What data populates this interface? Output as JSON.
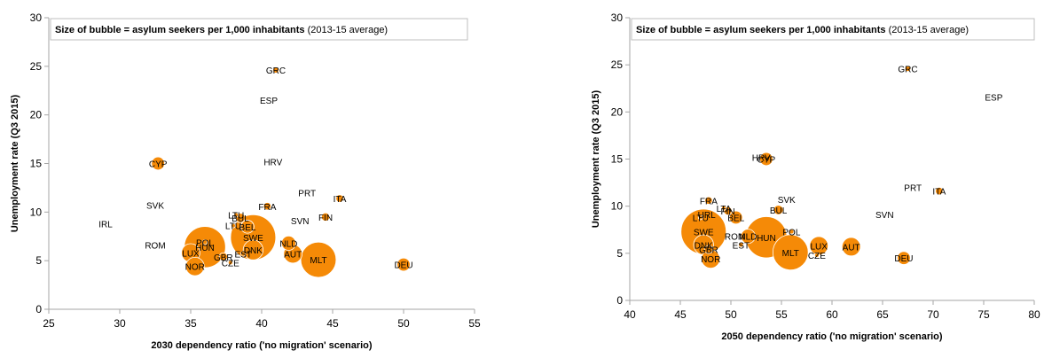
{
  "chart_data": [
    {
      "type": "scatter",
      "title": "",
      "note_bold": "Size of bubble = asylum seekers per 1,000 inhabitants",
      "note_normal": "(2013-15 average)",
      "xlabel": "2030 dependency ratio ('no migration' scenario)",
      "ylabel": "Unemployment rate (Q3 2015)",
      "xlim": [
        25,
        55
      ],
      "ylim": [
        0,
        30
      ],
      "xticks": [
        "25",
        "30",
        "35",
        "40",
        "45",
        "50",
        "55"
      ],
      "yticks": [
        "0",
        "5",
        "10",
        "15",
        "20",
        "25",
        "30"
      ],
      "grid": false,
      "points": [
        {
          "label": "GRC",
          "x": 41.0,
          "y": 24.6,
          "size": 0.3
        },
        {
          "label": "ESP",
          "x": 40.5,
          "y": 21.5,
          "size": 0.0
        },
        {
          "label": "HRV",
          "x": 40.8,
          "y": 15.2,
          "size": 0.0
        },
        {
          "label": "CYP",
          "x": 32.7,
          "y": 15.0,
          "size": 1.5
        },
        {
          "label": "SVK",
          "x": 32.5,
          "y": 10.7,
          "size": 0.0
        },
        {
          "label": "IRL",
          "x": 29.0,
          "y": 8.8,
          "size": 0.0
        },
        {
          "label": "ROM",
          "x": 32.5,
          "y": 6.6,
          "size": 0.0
        },
        {
          "label": "PRT",
          "x": 43.2,
          "y": 12.0,
          "size": 0.0
        },
        {
          "label": "ITA",
          "x": 45.5,
          "y": 11.4,
          "size": 0.5
        },
        {
          "label": "FRA",
          "x": 40.4,
          "y": 10.6,
          "size": 0.5
        },
        {
          "label": "FIN",
          "x": 44.5,
          "y": 9.5,
          "size": 0.6
        },
        {
          "label": "SVN",
          "x": 42.7,
          "y": 9.1,
          "size": 0.0
        },
        {
          "label": "LTU",
          "x": 38.2,
          "y": 9.7,
          "size": 0.1
        },
        {
          "label": "BUL",
          "x": 38.5,
          "y": 9.4,
          "size": 0.8
        },
        {
          "label": "BEL",
          "x": 39.0,
          "y": 8.5,
          "size": 1.5
        },
        {
          "label": "LTU",
          "x": 38.0,
          "y": 8.6,
          "size": 0.1
        },
        {
          "label": "POL",
          "x": 36.0,
          "y": 6.9,
          "size": 0.2
        },
        {
          "label": "HUN",
          "x": 36.0,
          "y": 6.4,
          "size": 15.0
        },
        {
          "label": "SWE",
          "x": 39.4,
          "y": 7.4,
          "size": 18.0
        },
        {
          "label": "DNK",
          "x": 39.4,
          "y": 6.1,
          "size": 3.5
        },
        {
          "label": "NLD",
          "x": 41.9,
          "y": 6.8,
          "size": 1.8
        },
        {
          "label": "AUT",
          "x": 42.2,
          "y": 5.7,
          "size": 3.0
        },
        {
          "label": "LUX",
          "x": 35.0,
          "y": 5.8,
          "size": 3.0
        },
        {
          "label": "GBR",
          "x": 37.3,
          "y": 5.4,
          "size": 0.6
        },
        {
          "label": "EST",
          "x": 38.7,
          "y": 5.7,
          "size": 0.2
        },
        {
          "label": "CZE",
          "x": 37.8,
          "y": 4.8,
          "size": 0.1
        },
        {
          "label": "NOR",
          "x": 35.3,
          "y": 4.4,
          "size": 3.0
        },
        {
          "label": "MLT",
          "x": 44.0,
          "y": 5.1,
          "size": 11.0
        },
        {
          "label": "DEU",
          "x": 50.0,
          "y": 4.6,
          "size": 1.5
        }
      ]
    },
    {
      "type": "scatter",
      "title": "",
      "note_bold": "Size of bubble = asylum seekers per 1,000 inhabitants",
      "note_normal": "(2013-15 average)",
      "xlabel": "2050 dependency ratio ('no migration' scenario)",
      "ylabel": "Unemployment rate (Q3 2015)",
      "xlim": [
        40,
        80
      ],
      "ylim": [
        0,
        30
      ],
      "xticks": [
        "40",
        "45",
        "50",
        "55",
        "60",
        "65",
        "70",
        "75",
        "80"
      ],
      "yticks": [
        "0",
        "5",
        "10",
        "15",
        "20",
        "25",
        "30"
      ],
      "grid": false,
      "points": [
        {
          "label": "GRC",
          "x": 67.5,
          "y": 24.6,
          "size": 0.3
        },
        {
          "label": "ESP",
          "x": 76.0,
          "y": 21.6,
          "size": 0.0
        },
        {
          "label": "HRV",
          "x": 53.0,
          "y": 15.2,
          "size": 0.0
        },
        {
          "label": "CYP",
          "x": 53.5,
          "y": 15.0,
          "size": 1.5
        },
        {
          "label": "PRT",
          "x": 68.0,
          "y": 12.0,
          "size": 0.0
        },
        {
          "label": "ITA",
          "x": 70.6,
          "y": 11.6,
          "size": 0.5
        },
        {
          "label": "SVK",
          "x": 55.5,
          "y": 10.7,
          "size": 0.0
        },
        {
          "label": "FRA",
          "x": 47.8,
          "y": 10.6,
          "size": 0.5
        },
        {
          "label": "LTA",
          "x": 49.3,
          "y": 9.8,
          "size": 0.1
        },
        {
          "label": "FIN",
          "x": 49.7,
          "y": 9.5,
          "size": 0.6
        },
        {
          "label": "BUL",
          "x": 54.7,
          "y": 9.6,
          "size": 0.8
        },
        {
          "label": "BEL",
          "x": 50.5,
          "y": 8.8,
          "size": 1.5
        },
        {
          "label": "SVN",
          "x": 65.2,
          "y": 9.1,
          "size": 0.0
        },
        {
          "label": "LTU",
          "x": 47.0,
          "y": 8.8,
          "size": 0.1
        },
        {
          "label": "URL",
          "x": 47.6,
          "y": 9.1,
          "size": 0.0
        },
        {
          "label": "SWE",
          "x": 47.3,
          "y": 7.3,
          "size": 18.0
        },
        {
          "label": "DNK",
          "x": 47.3,
          "y": 5.9,
          "size": 3.5
        },
        {
          "label": "ROM",
          "x": 50.4,
          "y": 6.8,
          "size": 0.0
        },
        {
          "label": "NLD",
          "x": 51.7,
          "y": 6.8,
          "size": 1.8
        },
        {
          "label": "HUN",
          "x": 53.5,
          "y": 6.7,
          "size": 15.0
        },
        {
          "label": "POL",
          "x": 56.0,
          "y": 7.3,
          "size": 0.2
        },
        {
          "label": "EST",
          "x": 51.0,
          "y": 5.9,
          "size": 0.2
        },
        {
          "label": "GBR",
          "x": 47.8,
          "y": 5.4,
          "size": 0.6
        },
        {
          "label": "NOR",
          "x": 48.0,
          "y": 4.4,
          "size": 3.0
        },
        {
          "label": "MLT",
          "x": 55.9,
          "y": 5.1,
          "size": 11.0
        },
        {
          "label": "LUX",
          "x": 58.7,
          "y": 5.8,
          "size": 3.0
        },
        {
          "label": "CZE",
          "x": 58.5,
          "y": 4.8,
          "size": 0.1
        },
        {
          "label": "AUT",
          "x": 61.9,
          "y": 5.7,
          "size": 3.0
        },
        {
          "label": "DEU",
          "x": 67.1,
          "y": 4.5,
          "size": 1.5
        }
      ]
    }
  ],
  "colors": {
    "bubble": "#f58a07",
    "axis": "#a6a6a6",
    "note_box": "#bfbfbf"
  }
}
